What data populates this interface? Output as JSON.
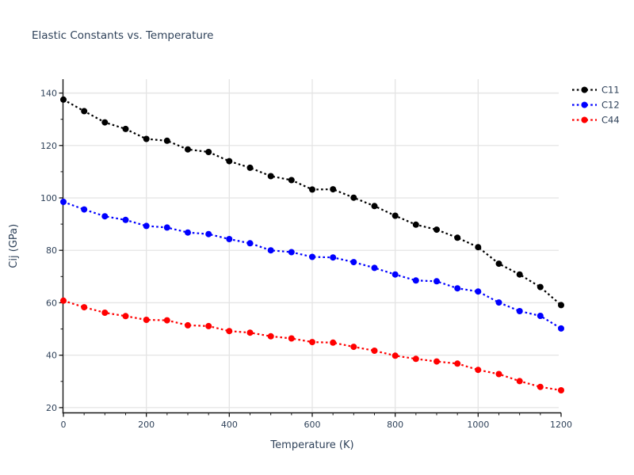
{
  "chart_data": {
    "type": "line",
    "title": "Elastic Constants vs. Temperature",
    "xlabel": "Temperature (K)",
    "ylabel": "Cij (GPa)",
    "x": [
      0,
      50,
      100,
      150,
      200,
      250,
      300,
      350,
      400,
      450,
      500,
      550,
      600,
      650,
      700,
      750,
      800,
      850,
      900,
      950,
      1000,
      1050,
      1100,
      1150,
      1200
    ],
    "series": [
      {
        "name": "C11",
        "color": "#000000",
        "values": [
          137.5,
          133.1,
          128.8,
          126.3,
          122.5,
          121.8,
          118.5,
          117.5,
          114.0,
          111.5,
          108.3,
          106.8,
          103.2,
          103.3,
          100.1,
          96.9,
          93.2,
          89.8,
          87.9,
          84.8,
          81.2,
          74.9,
          70.8,
          66.0,
          59.1
        ]
      },
      {
        "name": "C12",
        "color": "#0000ff",
        "values": [
          98.5,
          95.6,
          93.0,
          91.6,
          89.3,
          88.7,
          86.8,
          86.2,
          84.3,
          82.7,
          80.0,
          79.3,
          77.5,
          77.3,
          75.5,
          73.3,
          70.8,
          68.5,
          68.2,
          65.5,
          64.3,
          60.1,
          56.8,
          55.0,
          50.2
        ]
      },
      {
        "name": "C44",
        "color": "#ff0000",
        "values": [
          60.8,
          58.3,
          56.2,
          54.9,
          53.5,
          53.3,
          51.4,
          51.1,
          49.2,
          48.6,
          47.2,
          46.4,
          45.0,
          44.8,
          43.2,
          41.7,
          39.8,
          38.6,
          37.6,
          36.8,
          34.4,
          32.8,
          30.1,
          27.9,
          26.6
        ]
      }
    ],
    "xlim": [
      0,
      1200
    ],
    "ylim": [
      18,
      145.3
    ],
    "x_major_ticks": [
      0,
      200,
      400,
      600,
      800,
      1000,
      1200
    ],
    "x_minor_step": 50,
    "y_major_ticks": [
      20,
      40,
      60,
      80,
      100,
      120,
      140
    ],
    "y_minor_step": 10,
    "grid": true,
    "line_style": "dotted",
    "marker": "circle",
    "legend_position": "top-right-outside",
    "legend_entries": [
      "C11",
      "C12",
      "C44"
    ],
    "colors": {
      "text": "#2e4159",
      "grid": "#e4e4e4",
      "axis": "#151515",
      "background": "#ffffff"
    }
  }
}
